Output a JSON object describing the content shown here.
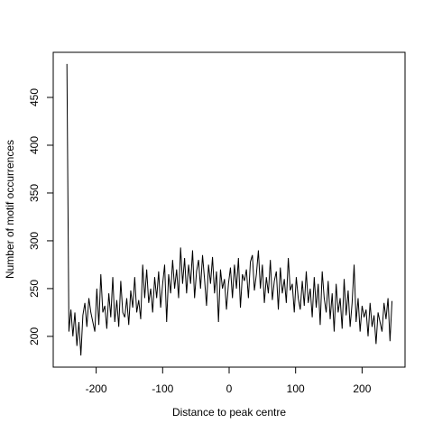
{
  "chart_data": {
    "type": "line",
    "x_label": "Distance to peak centre",
    "y_label": "Number of motif occurrences",
    "color": "#000000",
    "x": [
      -244,
      -241,
      -238,
      -235,
      -232,
      -229,
      -226,
      -223,
      -220,
      -217,
      -214,
      -211,
      -208,
      -205,
      -202,
      -199,
      -196,
      -193,
      -190,
      -187,
      -184,
      -181,
      -178,
      -175,
      -172,
      -169,
      -166,
      -163,
      -160,
      -157,
      -154,
      -151,
      -148,
      -145,
      -142,
      -139,
      -136,
      -133,
      -130,
      -127,
      -124,
      -121,
      -118,
      -115,
      -112,
      -109,
      -106,
      -103,
      -100,
      -97,
      -94,
      -91,
      -88,
      -85,
      -82,
      -79,
      -76,
      -73,
      -70,
      -67,
      -64,
      -61,
      -58,
      -55,
      -52,
      -49,
      -46,
      -43,
      -40,
      -37,
      -34,
      -31,
      -28,
      -25,
      -22,
      -19,
      -16,
      -13,
      -10,
      -7,
      -4,
      -1,
      2,
      5,
      8,
      11,
      14,
      17,
      20,
      23,
      26,
      29,
      32,
      35,
      38,
      41,
      44,
      47,
      50,
      53,
      56,
      59,
      62,
      65,
      68,
      71,
      74,
      77,
      80,
      83,
      86,
      89,
      92,
      95,
      98,
      101,
      104,
      107,
      110,
      113,
      116,
      119,
      122,
      125,
      128,
      131,
      134,
      137,
      140,
      143,
      146,
      149,
      152,
      155,
      158,
      161,
      164,
      167,
      170,
      173,
      176,
      179,
      182,
      185,
      188,
      191,
      194,
      197,
      200,
      203,
      206,
      209,
      212,
      215,
      218,
      221,
      224,
      227,
      230,
      233,
      236,
      239,
      242,
      245
    ],
    "values": [
      485,
      205,
      228,
      200,
      225,
      190,
      215,
      180,
      222,
      235,
      210,
      240,
      225,
      215,
      205,
      250,
      212,
      265,
      225,
      232,
      208,
      245,
      220,
      262,
      215,
      238,
      210,
      258,
      225,
      220,
      240,
      212,
      248,
      230,
      262,
      225,
      238,
      218,
      275,
      240,
      270,
      235,
      250,
      225,
      262,
      240,
      268,
      230,
      255,
      275,
      215,
      265,
      245,
      280,
      250,
      270,
      240,
      293,
      255,
      282,
      245,
      275,
      255,
      290,
      240,
      268,
      280,
      250,
      285,
      260,
      232,
      275,
      255,
      283,
      245,
      268,
      215,
      270,
      250,
      260,
      228,
      255,
      272,
      240,
      275,
      250,
      282,
      230,
      265,
      258,
      270,
      240,
      278,
      285,
      248,
      265,
      290,
      250,
      275,
      235,
      262,
      245,
      280,
      238,
      258,
      268,
      228,
      272,
      245,
      260,
      235,
      282,
      248,
      255,
      225,
      262,
      240,
      228,
      258,
      232,
      268,
      235,
      250,
      220,
      262,
      230,
      255,
      212,
      268,
      240,
      225,
      258,
      218,
      245,
      205,
      255,
      225,
      240,
      208,
      260,
      222,
      248,
      210,
      235,
      275,
      215,
      240,
      205,
      232,
      220,
      228,
      200,
      235,
      210,
      222,
      192,
      225,
      215,
      205,
      235,
      218,
      240,
      195,
      237
    ],
    "xlim": [
      -264.6,
      264.6
    ],
    "ylim": [
      167.8,
      497.2
    ],
    "xticks": [
      -200,
      -100,
      0,
      100,
      200
    ],
    "yticks": [
      200,
      250,
      300,
      350,
      400,
      450
    ]
  }
}
